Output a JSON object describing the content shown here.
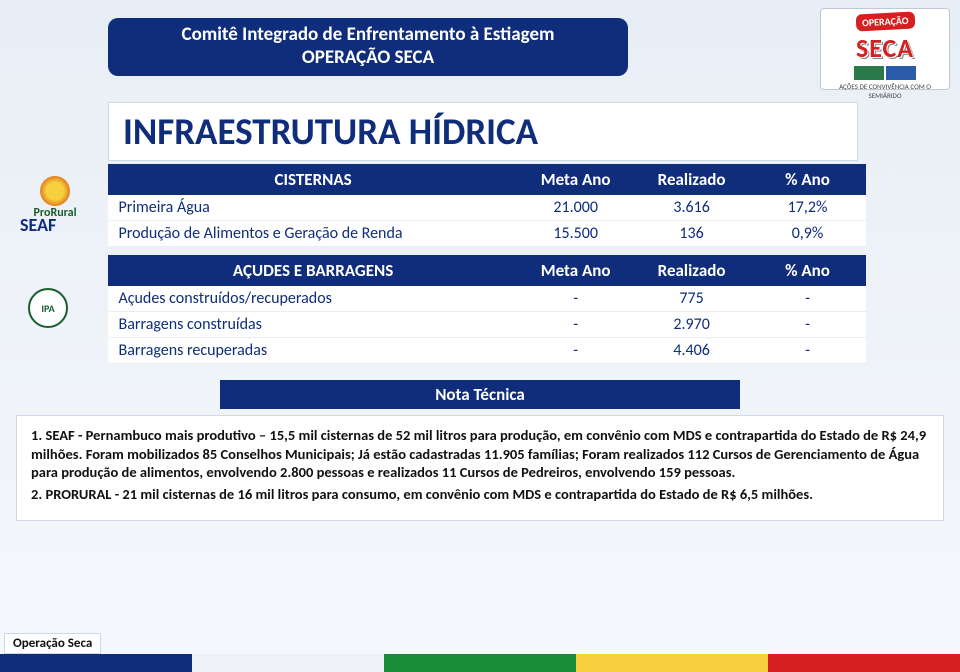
{
  "header": {
    "line1": "Comitê Integrado de Enfrentamento à Estiagem",
    "line2": "OPERAÇÃO SECA"
  },
  "logo_seca": {
    "operacao": "OPERAÇÃO",
    "seca": "SECA",
    "sub": "AÇÕES DE CONVIVÊNCIA COM O SEMIÁRIDO"
  },
  "main_title": "INFRAESTRUTURA HÍDRICA",
  "prorural_label": "ProRural",
  "seaf_label": "SEAF",
  "ipa_label": "IPA",
  "table1": {
    "headers": [
      "CISTERNAS",
      "Meta Ano",
      "Realizado",
      "% Ano"
    ],
    "rows": [
      {
        "label": "Primeira Água",
        "meta": "21.000",
        "realizado": "3.616",
        "pct": "17,2%"
      },
      {
        "label": "Produção de Alimentos e Geração de Renda",
        "meta": "15.500",
        "realizado": "136",
        "pct": "0,9%"
      }
    ]
  },
  "table2": {
    "headers": [
      "AÇUDES E BARRAGENS",
      "Meta Ano",
      "Realizado",
      "% Ano"
    ],
    "rows": [
      {
        "label": "Açudes construídos/recuperados",
        "meta": "-",
        "realizado": "775",
        "pct": "-"
      },
      {
        "label": "Barragens construídas",
        "meta": "-",
        "realizado": "2.970",
        "pct": "-"
      },
      {
        "label": "Barragens recuperadas",
        "meta": "-",
        "realizado": "4.406",
        "pct": "-"
      }
    ]
  },
  "nota": {
    "title": "Nota Técnica",
    "p1a": "1. SEAF - Pernambuco mais produtivo – 15,5 mil cisternas de 52 mil litros para produção, em convênio com MDS e contrapartida do Estado de R$ 24,9 milhões. Foram mobilizados 85 Conselhos Municipais; Já estão cadastradas 11.905 famílias; Foram realizados 112 Cursos de Gerenciamento de Água para produção de alimentos, envolvendo 2.800 pessoas e realizados 11 Cursos de Pedreiros, envolvendo 159 pessoas.",
    "p2": "2. PRORURAL - 21 mil cisternas de 16 mil litros para consumo, em convênio com MDS e contrapartida do Estado de R$ 6,5 milhões."
  },
  "footer_label": "Operação Seca",
  "colors": {
    "primary": "#0f2d7a",
    "red": "#d42020",
    "green": "#1a8c3a",
    "yellow": "#f7d040"
  }
}
